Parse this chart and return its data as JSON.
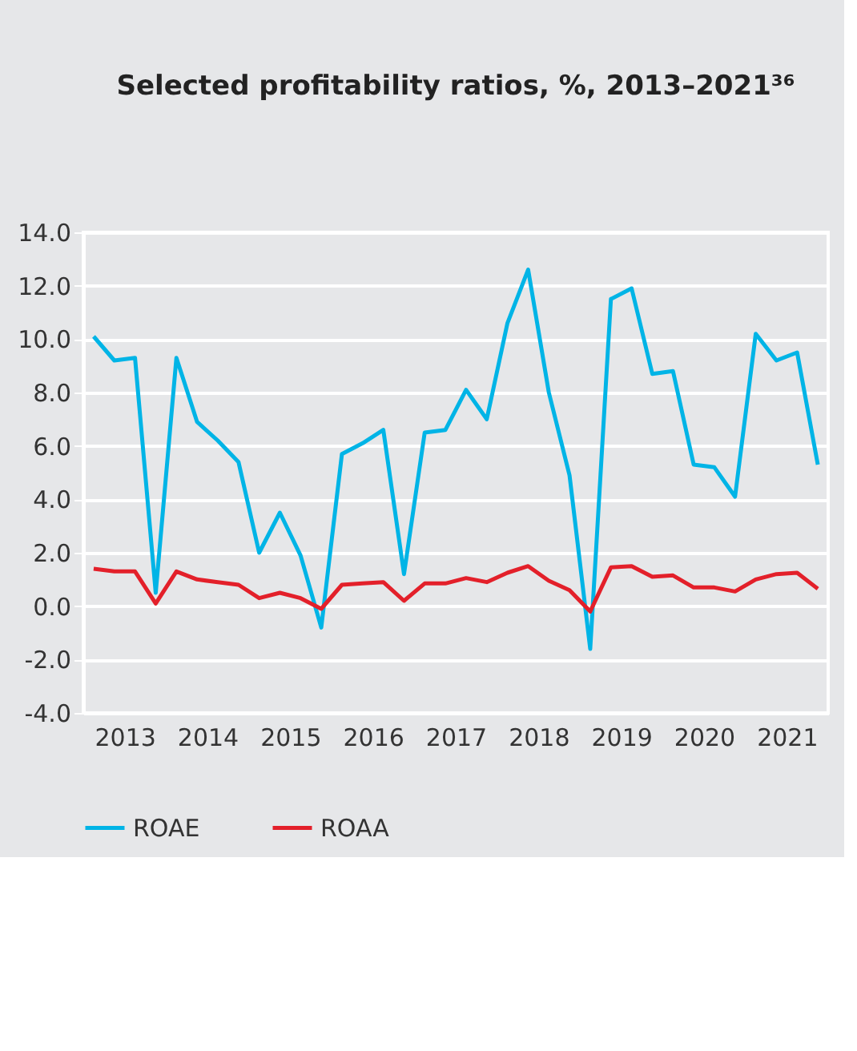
{
  "chart_data": {
    "type": "line",
    "title": "Selected profitability ratios, %, 2013–2021³⁶",
    "x": [
      2013.125,
      2013.375,
      2013.625,
      2013.875,
      2014.125,
      2014.375,
      2014.625,
      2014.875,
      2015.125,
      2015.375,
      2015.625,
      2015.875,
      2016.125,
      2016.375,
      2016.625,
      2016.875,
      2017.125,
      2017.375,
      2017.625,
      2017.875,
      2018.125,
      2018.375,
      2018.625,
      2018.875,
      2019.125,
      2019.375,
      2019.625,
      2019.875,
      2020.125,
      2020.375,
      2020.625,
      2020.875,
      2021.125,
      2021.375,
      2021.625,
      2021.875
    ],
    "series": [
      {
        "name": "ROAE",
        "color": "#00b4e6",
        "values": [
          10.1,
          9.2,
          9.3,
          0.5,
          9.3,
          6.9,
          6.2,
          5.4,
          2.0,
          3.5,
          1.9,
          -0.8,
          5.7,
          6.1,
          6.6,
          1.2,
          6.5,
          6.6,
          8.1,
          7.0,
          10.6,
          12.6,
          8.0,
          4.9,
          -1.6,
          11.5,
          11.9,
          8.7,
          8.8,
          5.3,
          5.2,
          4.1,
          10.2,
          9.2,
          9.5,
          5.3
        ]
      },
      {
        "name": "ROAA",
        "color": "#e3202a",
        "values": [
          1.4,
          1.3,
          1.3,
          0.1,
          1.3,
          1.0,
          0.9,
          0.8,
          0.3,
          0.5,
          0.3,
          -0.1,
          0.8,
          0.85,
          0.9,
          0.2,
          0.85,
          0.85,
          1.05,
          0.9,
          1.25,
          1.5,
          0.95,
          0.6,
          -0.2,
          1.45,
          1.5,
          1.1,
          1.15,
          0.7,
          0.7,
          0.55,
          1.0,
          1.2,
          1.25,
          0.65
        ]
      }
    ],
    "xlim": [
      2013,
      2022
    ],
    "xticks": [
      {
        "value": 2013.5,
        "label": "2013"
      },
      {
        "value": 2014.5,
        "label": "2014"
      },
      {
        "value": 2015.5,
        "label": "2015"
      },
      {
        "value": 2016.5,
        "label": "2016"
      },
      {
        "value": 2017.5,
        "label": "2017"
      },
      {
        "value": 2018.5,
        "label": "2018"
      },
      {
        "value": 2019.5,
        "label": "2019"
      },
      {
        "value": 2020.5,
        "label": "2020"
      },
      {
        "value": 2021.5,
        "label": "2021"
      }
    ],
    "ylim": [
      -4,
      14
    ],
    "yticks": [
      {
        "value": -4,
        "label": "-4.0"
      },
      {
        "value": -2,
        "label": "-2.0"
      },
      {
        "value": 0,
        "label": "0.0"
      },
      {
        "value": 2,
        "label": "2.0"
      },
      {
        "value": 4,
        "label": "4.0"
      },
      {
        "value": 6,
        "label": "6.0"
      },
      {
        "value": 8,
        "label": "8.0"
      },
      {
        "value": 10,
        "label": "10.0"
      },
      {
        "value": 12,
        "label": "12.0"
      },
      {
        "value": 14,
        "label": "14.0"
      }
    ],
    "grid": "y",
    "legend": "bottom",
    "marker": "none",
    "line_style": "solid"
  }
}
